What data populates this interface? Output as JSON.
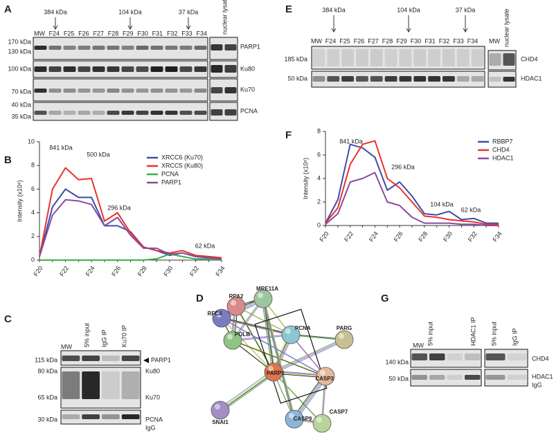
{
  "panel_labels": [
    "A",
    "B",
    "C",
    "D",
    "E",
    "F",
    "G"
  ],
  "panel_a": {
    "size_markers": [
      "384 kDa",
      "104 kDa",
      "37 kDa"
    ],
    "lanes": [
      "MW",
      "F24",
      "F25",
      "F26",
      "F27",
      "F28",
      "F29",
      "F30",
      "F31",
      "F32",
      "F33",
      "F34"
    ],
    "extra_lane": "nuclear lysate",
    "mw_labels": [
      "170 kDa",
      "130 kDa",
      "100 kDa",
      "70 kDa",
      "40 kDa",
      "35 kDa"
    ],
    "proteins": [
      "PARP1",
      "Ku80",
      "Ku70",
      "PCNA"
    ]
  },
  "panel_e": {
    "size_markers": [
      "384 kDa",
      "104 kDa",
      "37 kDa"
    ],
    "lanes": [
      "MW",
      "F24",
      "F25",
      "F26",
      "F27",
      "F28",
      "F29",
      "F30",
      "F31",
      "F32",
      "F33",
      "F34"
    ],
    "extra_lanes": [
      "MW",
      "nuclear lysate"
    ],
    "mw_labels": [
      "185 kDa",
      "50 kDa"
    ],
    "proteins": [
      "CHD4",
      "HDAC1"
    ]
  },
  "panel_c": {
    "lanes": [
      "MW",
      "5% input",
      "IgG IP",
      "Ku70 IP"
    ],
    "mw_labels": [
      "115 kDa",
      "80 kDa",
      "65 kDa",
      "30 kDa"
    ],
    "proteins": [
      "PARP1",
      "Ku80",
      "Ku70",
      "PCNA",
      "IgG"
    ]
  },
  "panel_d": {
    "nodes": [
      "RPA2",
      "MRE11A",
      "RFC4",
      "POLB",
      "PCNA",
      "PARG",
      "PARP1",
      "CASP3",
      "SNAI1",
      "CASP9",
      "CASP7"
    ]
  },
  "panel_g": {
    "lanes": [
      "MW",
      "5% input",
      "HDAC1 IP",
      "5% input",
      "IgG IP"
    ],
    "mw_labels": [
      "140 kDa",
      "50 kDa"
    ],
    "proteins": [
      "CHD4",
      "HDAC1",
      "IgG"
    ]
  },
  "chart_data": [
    {
      "type": "line",
      "ylabel": "Intensity (x10⁸)",
      "categories": [
        "F20",
        null,
        "F22",
        null,
        "F24",
        null,
        "F26",
        null,
        "F28",
        null,
        "F30",
        null,
        "F32",
        null,
        "F34"
      ],
      "ylim": [
        0,
        10
      ],
      "yticks": [
        0,
        2,
        4,
        6,
        8,
        10
      ],
      "legend": "top-right",
      "annotations": [
        "841 kDa",
        "500 kDa",
        "296 kDa",
        "62 kDa"
      ],
      "series": [
        {
          "name": "XRCC6 (Ku70)",
          "color": "#3a4ea8",
          "values": [
            0.3,
            4.5,
            6.0,
            5.3,
            5.3,
            2.9,
            2.9,
            2.4,
            1.1,
            0.8,
            0.4,
            0.6,
            0.3,
            0.2,
            0.1
          ]
        },
        {
          "name": "XRCC5 (Ku80)",
          "color": "#e8312a",
          "values": [
            0.3,
            6.0,
            7.8,
            6.8,
            6.9,
            3.3,
            4.0,
            2.3,
            1.1,
            0.8,
            0.6,
            0.8,
            0.4,
            0.3,
            0.2
          ]
        },
        {
          "name": "PCNA",
          "color": "#3aae48",
          "values": [
            0,
            0,
            0,
            0,
            0,
            0,
            0,
            0,
            0,
            0.1,
            0.5,
            0.3,
            0.1,
            0.1,
            0.1
          ]
        },
        {
          "name": "PARP1",
          "color": "#8a4a9e",
          "values": [
            0.3,
            3.8,
            5.1,
            5.0,
            4.7,
            2.9,
            3.6,
            2.1,
            1.0,
            1.0,
            0.5,
            0.6,
            0.3,
            0.2,
            0.1
          ]
        }
      ]
    },
    {
      "type": "line",
      "ylabel": "Intensity (x10⁸)",
      "categories": [
        "F20",
        null,
        "F22",
        null,
        "F24",
        null,
        "F26",
        null,
        "F28",
        null,
        "F30",
        null,
        "F32",
        null,
        "F34"
      ],
      "ylim": [
        0,
        8
      ],
      "yticks": [
        0,
        2,
        4,
        6,
        8
      ],
      "legend": "top-right",
      "annotations": [
        "841 kDa",
        "296 kDa",
        "104 kDa",
        "62 kDa"
      ],
      "series": [
        {
          "name": "RBBP7",
          "color": "#3a4ea8",
          "values": [
            0.2,
            2.2,
            6.9,
            6.6,
            5.8,
            3.0,
            3.7,
            2.5,
            1.0,
            0.9,
            1.2,
            0.5,
            0.6,
            0.2,
            0.2
          ]
        },
        {
          "name": "CHD4",
          "color": "#e8312a",
          "values": [
            0.2,
            1.5,
            5.2,
            6.9,
            7.2,
            4.0,
            3.2,
            2.0,
            0.8,
            0.7,
            0.5,
            0.4,
            0.3,
            0.1,
            0.1
          ]
        },
        {
          "name": "HDAC1",
          "color": "#8a4a9e",
          "values": [
            0.1,
            1.0,
            3.7,
            4.0,
            4.5,
            2.0,
            1.7,
            0.7,
            0.2,
            0.2,
            0.2,
            0.1,
            0.1,
            0,
            0
          ]
        }
      ]
    }
  ]
}
